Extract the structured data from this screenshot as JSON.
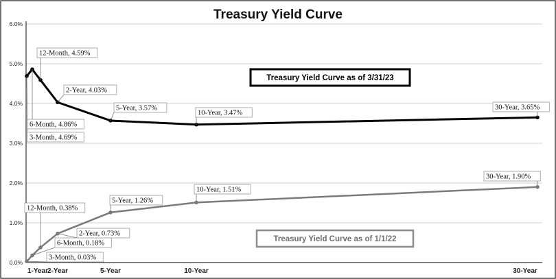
{
  "chart_data": {
    "type": "line",
    "title": "Treasury Yield Curve",
    "xlabel": "",
    "ylabel": "",
    "ylim": [
      0,
      6.0
    ],
    "y_ticks": [
      "0.0%",
      "1.0%",
      "2.0%",
      "3.0%",
      "4.0%",
      "5.0%",
      "6.0%"
    ],
    "x_ticks": [
      {
        "label": "1-Year",
        "at": "12-Month"
      },
      {
        "label": "2-Year",
        "at": "2-Year"
      },
      {
        "label": "5-Year",
        "at": "5-Year"
      },
      {
        "label": "10-Year",
        "at": "10-Year"
      },
      {
        "label": "30-Year",
        "at": "30-Year"
      }
    ],
    "grid": "horizontal",
    "series": [
      {
        "name": "Treasury Yield Curve as of 3/31/23",
        "color": "#000000",
        "points": [
          {
            "term": "3-Month",
            "value": 4.69,
            "label": "3-Month, 4.69%"
          },
          {
            "term": "6-Month",
            "value": 4.86,
            "label": "6-Month, 4.86%"
          },
          {
            "term": "12-Month",
            "value": 4.59,
            "label": "12-Month, 4.59%"
          },
          {
            "term": "2-Year",
            "value": 4.03,
            "label": "2-Year, 4.03%"
          },
          {
            "term": "5-Year",
            "value": 3.57,
            "label": "5-Year, 3.57%"
          },
          {
            "term": "10-Year",
            "value": 3.47,
            "label": "10-Year, 3.47%"
          },
          {
            "term": "30-Year",
            "value": 3.65,
            "label": "30-Year, 3.65%"
          }
        ]
      },
      {
        "name": "Treasury Yield Curve as of 1/1/22",
        "color": "#7a7a7a",
        "points": [
          {
            "term": "3-Month",
            "value": 0.03,
            "label": "3-Month, 0.03%"
          },
          {
            "term": "6-Month",
            "value": 0.18,
            "label": "6-Month, 0.18%"
          },
          {
            "term": "12-Month",
            "value": 0.38,
            "label": "12-Month, 0.38%"
          },
          {
            "term": "2-Year",
            "value": 0.73,
            "label": "2-Year, 0.73%"
          },
          {
            "term": "5-Year",
            "value": 1.26,
            "label": "5-Year, 1.26%"
          },
          {
            "term": "10-Year",
            "value": 1.51,
            "label": "10-Year, 1.51%"
          },
          {
            "term": "30-Year",
            "value": 1.9,
            "label": "30-Year, 1.90%"
          }
        ]
      }
    ]
  }
}
